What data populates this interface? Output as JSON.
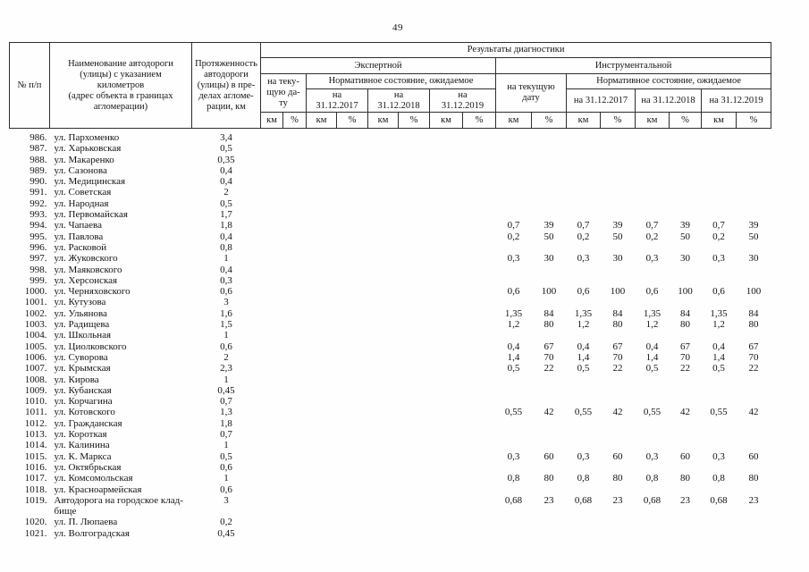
{
  "page": {
    "number": "49"
  },
  "table": {
    "header": {
      "num": "№ п/п",
      "name": "Наименование автодороги\n(улицы) с указанием\nкилометров\n(адрес объекта в границах\nагломерации)",
      "length": "Протяженность\nавтодороги\n(улицы) в пре-\nделах агломе-\nрации, км",
      "results": "Результаты диагностики",
      "expert": "Экспертной",
      "instrumental": "Инструментальной",
      "expert_current": "на теку-\nщую да-\nту",
      "instr_current": "на текущую\nдату",
      "normative": "Нормативное состояние, ожидаемое",
      "expert_2017": "на\n31.12.2017",
      "expert_2018": "на\n31.12.2018",
      "expert_2019": "на\n31.12.2019",
      "instr_2017": "на 31.12.2017",
      "instr_2018": "на 31.12.2018",
      "instr_2019": "на 31.12.2019",
      "km": "км",
      "pct": "%"
    },
    "rows": [
      {
        "num": "986.",
        "name": "ул. Пархоменко",
        "len": "3,4",
        "km": "",
        "pct": ""
      },
      {
        "num": "987.",
        "name": "ул. Харьковская",
        "len": "0,5",
        "km": "",
        "pct": ""
      },
      {
        "num": "988.",
        "name": "ул. Макаренко",
        "len": "0,35",
        "km": "",
        "pct": ""
      },
      {
        "num": "989.",
        "name": "ул. Сазонова",
        "len": "0,4",
        "km": "",
        "pct": ""
      },
      {
        "num": "990.",
        "name": "ул. Медицинская",
        "len": "0,4",
        "km": "",
        "pct": ""
      },
      {
        "num": "991.",
        "name": "ул. Советская",
        "len": "2",
        "km": "",
        "pct": ""
      },
      {
        "num": "992.",
        "name": "ул. Народная",
        "len": "0,5",
        "km": "",
        "pct": ""
      },
      {
        "num": "993.",
        "name": "ул. Первомайская",
        "len": "1,7",
        "km": "",
        "pct": ""
      },
      {
        "num": "994.",
        "name": "ул. Чапаева",
        "len": "1,8",
        "km": "0,7",
        "pct": "39"
      },
      {
        "num": "995.",
        "name": "ул. Павлова",
        "len": "0,4",
        "km": "0,2",
        "pct": "50"
      },
      {
        "num": "996.",
        "name": "ул. Расковой",
        "len": "0,8",
        "km": "",
        "pct": ""
      },
      {
        "num": "997.",
        "name": "ул. Жуковского",
        "len": "1",
        "km": "0,3",
        "pct": "30"
      },
      {
        "num": "998.",
        "name": "ул. Маяковского",
        "len": "0,4",
        "km": "",
        "pct": ""
      },
      {
        "num": "999.",
        "name": "ул. Херсонская",
        "len": "0,3",
        "km": "",
        "pct": ""
      },
      {
        "num": "1000.",
        "name": "ул. Черняховского",
        "len": "0,6",
        "km": "0,6",
        "pct": "100"
      },
      {
        "num": "1001.",
        "name": "ул. Кутузова",
        "len": "3",
        "km": "",
        "pct": ""
      },
      {
        "num": "1002.",
        "name": "ул. Ульянова",
        "len": "1,6",
        "km": "1,35",
        "pct": "84"
      },
      {
        "num": "1003.",
        "name": "ул. Радищева",
        "len": "1,5",
        "km": "1,2",
        "pct": "80"
      },
      {
        "num": "1004.",
        "name": "ул. Школьная",
        "len": "1",
        "km": "",
        "pct": ""
      },
      {
        "num": "1005.",
        "name": "ул. Циолковского",
        "len": "0,6",
        "km": "0,4",
        "pct": "67"
      },
      {
        "num": "1006.",
        "name": "ул. Суворова",
        "len": "2",
        "km": "1,4",
        "pct": "70"
      },
      {
        "num": "1007.",
        "name": "ул. Крымская",
        "len": "2,3",
        "km": "0,5",
        "pct": "22"
      },
      {
        "num": "1008.",
        "name": "ул. Кирова",
        "len": "1",
        "km": "",
        "pct": ""
      },
      {
        "num": "1009.",
        "name": "ул. Кубанская",
        "len": "0,45",
        "km": "",
        "pct": ""
      },
      {
        "num": "1010.",
        "name": "ул. Корчагина",
        "len": "0,7",
        "km": "",
        "pct": ""
      },
      {
        "num": "1011.",
        "name": "ул. Котовского",
        "len": "1,3",
        "km": "0,55",
        "pct": "42"
      },
      {
        "num": "1012.",
        "name": "ул. Гражданская",
        "len": "1,8",
        "km": "",
        "pct": ""
      },
      {
        "num": "1013.",
        "name": "ул. Короткая",
        "len": "0,7",
        "km": "",
        "pct": ""
      },
      {
        "num": "1014.",
        "name": "ул. Калинина",
        "len": "1",
        "km": "",
        "pct": ""
      },
      {
        "num": "1015.",
        "name": "ул. К. Маркса",
        "len": "0,5",
        "km": "0,3",
        "pct": "60"
      },
      {
        "num": "1016.",
        "name": "ул. Октябрьская",
        "len": "0,6",
        "km": "",
        "pct": ""
      },
      {
        "num": "1017.",
        "name": "ул. Комсомольская",
        "len": "1",
        "km": "0,8",
        "pct": "80"
      },
      {
        "num": "1018.",
        "name": "ул. Красноармейская",
        "len": "0,6",
        "km": "",
        "pct": ""
      },
      {
        "num": "1019.",
        "name": "Автодорога на городское клад-\nбище",
        "len": "3",
        "km": "0,68",
        "pct": "23"
      },
      {
        "num": "1020.",
        "name": "ул. П. Люпаева",
        "len": "0,2",
        "km": "",
        "pct": ""
      },
      {
        "num": "1021.",
        "name": "ул. Волгоградская",
        "len": "0,45",
        "km": "",
        "pct": ""
      }
    ]
  }
}
